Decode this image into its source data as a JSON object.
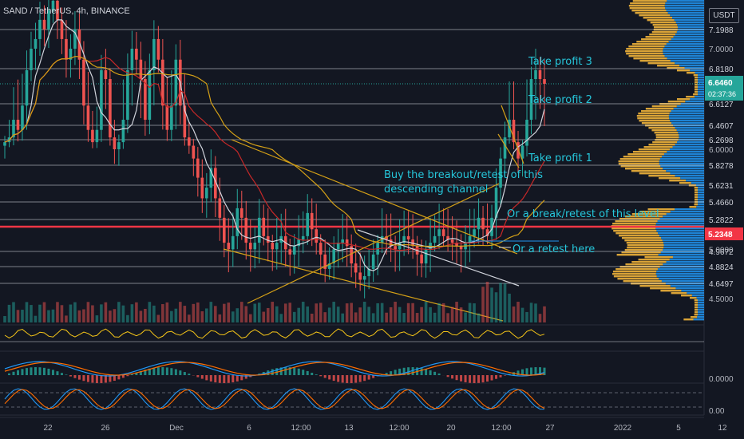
{
  "header": {
    "symbol_line": "SAND / TetherUS, 4h, BINANCE",
    "currency_button": "USDT"
  },
  "annotations": {
    "tp3": "Take profit 3",
    "tp2": "Take profit 2",
    "tp1": "Take profit 1",
    "breakout_line1": "Buy the breakout/retest of this",
    "breakout_line2": "descending channel",
    "break_level": "Or a break/retest of this level",
    "retest": "Or a retest here"
  },
  "colors": {
    "bg": "#131722",
    "up": "#26a69a",
    "down": "#ef5350",
    "annotation": "#26c6da",
    "channel": "#d4a017",
    "volume_profile_up": "#2196f3",
    "volume_profile_down": "#f0b33a",
    "current_price_tag": "#26a69a",
    "red_level_tag": "#f23645"
  },
  "chart_data": {
    "type": "candlestick",
    "timeframe": "4h",
    "y_axis_ticks": [
      "7.0000",
      "6.0000",
      "5.0000",
      "4.5000"
    ],
    "x_axis_ticks": [
      "22",
      "26",
      "Dec",
      "6",
      "12:00",
      "13",
      "12:00",
      "20",
      "12:00",
      "27",
      "2022",
      "5",
      "12"
    ],
    "horizontal_levels": [
      {
        "label": "7.1988",
        "value": 7.1988
      },
      {
        "label": "6.8180",
        "value": 6.818
      },
      {
        "label": "6.6127",
        "value": 6.6127
      },
      {
        "label": "6.4607",
        "value": 6.4607
      },
      {
        "label": "6.2698",
        "value": 6.2698
      },
      {
        "label": "5.8278",
        "value": 5.8278
      },
      {
        "label": "5.6231",
        "value": 5.6231
      },
      {
        "label": "5.4660",
        "value": 5.466
      },
      {
        "label": "5.2822",
        "value": 5.2822
      },
      {
        "label": "4.9672",
        "value": 4.9672
      },
      {
        "label": "4.8824",
        "value": 4.8824
      },
      {
        "label": "4.6497",
        "value": 4.6497
      }
    ],
    "current_price": {
      "label": "6.6460",
      "value": 6.646,
      "countdown": "02:37:36"
    },
    "red_level": {
      "label": "5.2348",
      "value": 5.2348
    },
    "oscillator_labels": [
      "0.0000",
      "0.00"
    ],
    "close_series": [
      6.2,
      6.3,
      6.5,
      6.4,
      6.6,
      6.8,
      7.0,
      7.1,
      7.3,
      7.2,
      7.4,
      7.5,
      7.3,
      7.1,
      6.9,
      7.0,
      7.2,
      6.9,
      6.6,
      6.4,
      6.2,
      6.4,
      6.8,
      6.7,
      6.3,
      6.0,
      6.2,
      6.5,
      6.8,
      7.0,
      6.9,
      6.7,
      6.5,
      6.8,
      7.1,
      6.9,
      6.6,
      6.4,
      6.6,
      6.9,
      6.6,
      6.3,
      6.1,
      5.9,
      5.7,
      5.5,
      5.6,
      5.8,
      5.5,
      5.3,
      5.1,
      5.0,
      5.2,
      5.4,
      5.3,
      5.1,
      5.0,
      5.1,
      5.3,
      5.2,
      5.1,
      5.0,
      5.1,
      5.2,
      5.0,
      4.95,
      5.05,
      5.15,
      5.2,
      5.35,
      5.25,
      5.1,
      4.95,
      4.85,
      4.9,
      5.0,
      5.1,
      5.15,
      5.05,
      4.9,
      4.8,
      4.7,
      4.75,
      4.85,
      4.95,
      5.1,
      5.2,
      5.15,
      5.05,
      5.0,
      5.1,
      5.2,
      5.15,
      5.05,
      4.95,
      4.9,
      5.0,
      5.1,
      5.2,
      5.25,
      5.2,
      5.15,
      5.1,
      5.05,
      5.0,
      5.1,
      5.2,
      5.25,
      5.3,
      5.25,
      5.2,
      5.3,
      5.6,
      5.9,
      6.3,
      6.5,
      6.2,
      5.9,
      6.1,
      6.5,
      6.7,
      6.8,
      6.7,
      6.646
    ]
  }
}
